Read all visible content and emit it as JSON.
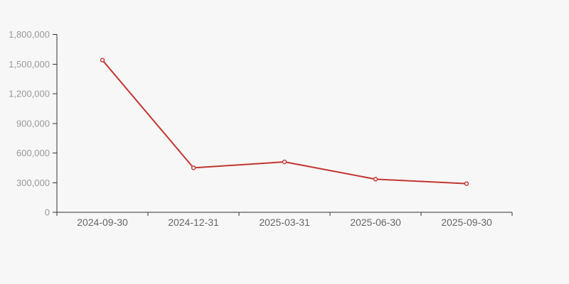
{
  "chart_data": {
    "type": "line",
    "title": "",
    "xlabel": "",
    "ylabel": "",
    "x": [
      "2024-09-30",
      "2024-12-31",
      "2025-03-31",
      "2025-06-30",
      "2025-09-30"
    ],
    "series": [
      {
        "name": "value",
        "values": [
          1540000,
          450000,
          510000,
          335000,
          290000
        ]
      }
    ],
    "ylim": [
      0,
      1800000
    ],
    "y_tick_step": 300000,
    "y_tick_labels": [
      "0",
      "300,000",
      "600,000",
      "900,000",
      "1,200,000",
      "1,500,000",
      "1,800,000"
    ],
    "grid": false,
    "legend": false,
    "marker": "open-circle",
    "colors": {
      "background": "#f7f7f7",
      "line": "#c23531",
      "marker_fill": "#f7f7f7",
      "axis": "#333333",
      "y_label": "#999999",
      "x_label": "#666666"
    }
  }
}
